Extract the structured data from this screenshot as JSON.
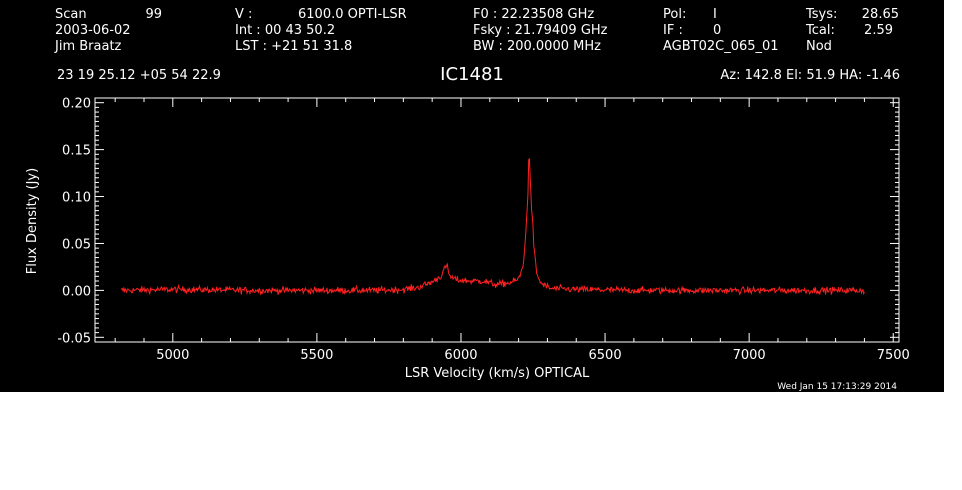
{
  "header": {
    "col1": [
      "Scan",
      "99",
      "2003-06-02",
      "Jim Braatz"
    ],
    "col2": [
      "V   :",
      "6100.0 OPTI-LSR",
      "Int  :  00 43 50.2",
      "LST : +21 51 31.8"
    ],
    "col3": [
      "F0    :  22.23508 GHz",
      "Fsky :  21.79409 GHz",
      "BW   : 200.0000 MHz"
    ],
    "col4": [
      "Pol:",
      "I",
      "IF :",
      "0",
      "AGBT02C_065_01"
    ],
    "col5": [
      "Tsys:",
      "28.65",
      "Tcal:",
      "2.59",
      "Nod"
    ],
    "coords": "23 19 25.12  +05 54 22.9",
    "source": "IC1481",
    "pointing": "Az: 142.8   El:  51.9   HA: -1.46",
    "timestamp": "Wed Jan 15 17:13:29 2014"
  },
  "colors": {
    "background": "#000000",
    "axes": "#ffffff",
    "trace": "#ff2020"
  },
  "chart_data": {
    "type": "line",
    "title": "IC1481",
    "xlabel": "LSR Velocity (km/s) OPTICAL",
    "ylabel": "Flux Density (Jy)",
    "xlim": [
      4730,
      7520
    ],
    "ylim": [
      -0.055,
      0.205
    ],
    "xticks": [
      5000,
      5500,
      6000,
      6500,
      7000,
      7500
    ],
    "xtick_labels": [
      "5000",
      "5500",
      "6000",
      "6500",
      "7000",
      "7500"
    ],
    "yticks": [
      -0.05,
      0,
      0.05,
      0.1,
      0.15,
      0.2
    ],
    "ytick_labels": [
      "-0.05",
      "0.00",
      "0.05",
      "0.10",
      "0.15",
      "0.20"
    ],
    "grid": false,
    "series": [
      {
        "x": [
          4820,
          5000,
          5300,
          5600,
          5700,
          5800,
          5850,
          5900,
          5930,
          5950,
          5960,
          5970,
          5990,
          6030,
          6080,
          6120,
          6170,
          6200,
          6215,
          6225,
          6232,
          6236,
          6240,
          6244,
          6248,
          6252,
          6258,
          6265,
          6280,
          6310,
          6400,
          6600,
          6800,
          7000,
          7200,
          7400
        ],
        "y": [
          0.0,
          0.001,
          0.0,
          0.0,
          0.0,
          0.001,
          0.003,
          0.009,
          0.015,
          0.027,
          0.016,
          0.013,
          0.011,
          0.01,
          0.01,
          0.006,
          0.008,
          0.012,
          0.025,
          0.06,
          0.1,
          0.155,
          0.12,
          0.09,
          0.08,
          0.05,
          0.03,
          0.015,
          0.007,
          0.002,
          0.001,
          0.0,
          0.0,
          0.0,
          0.0,
          0.0
        ],
        "noise_rms": 0.0018
      }
    ]
  }
}
